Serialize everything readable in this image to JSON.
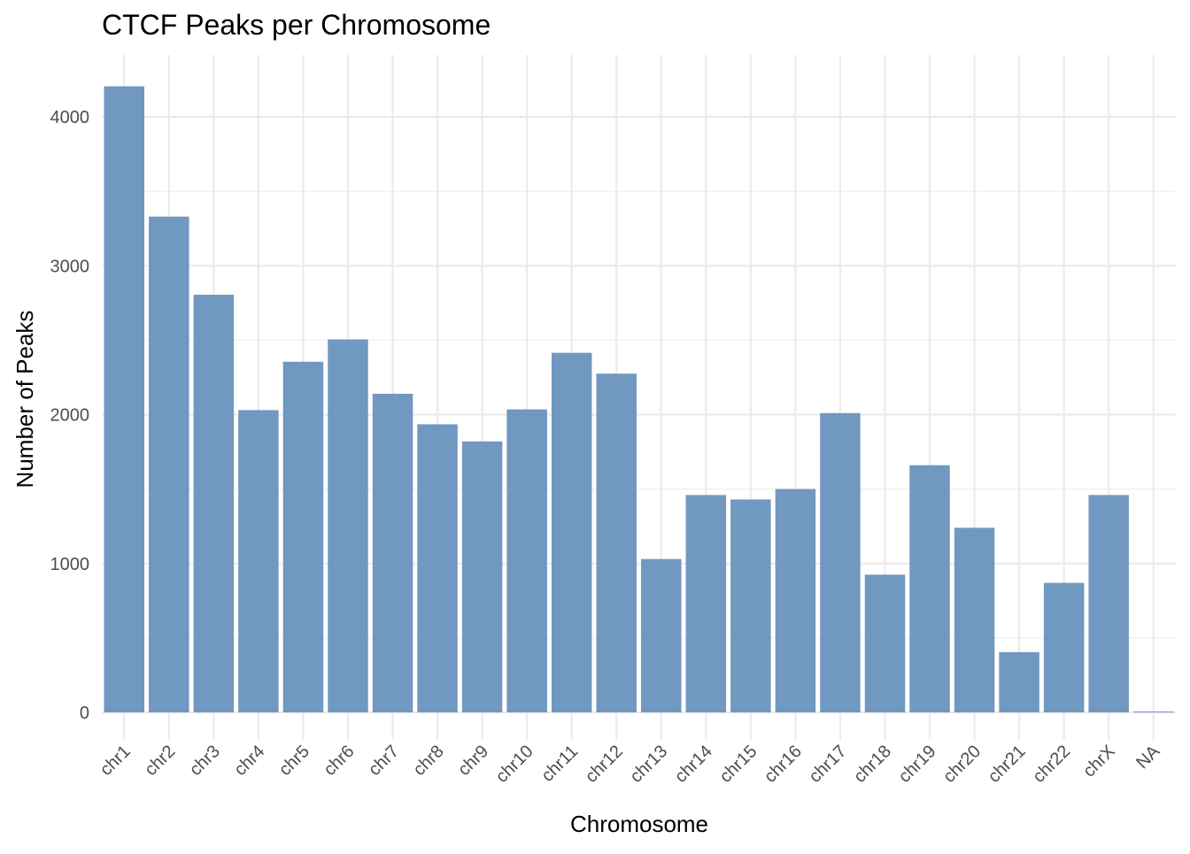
{
  "chart_data": {
    "type": "bar",
    "title": "CTCF Peaks per Chromosome",
    "xlabel": "Chromosome",
    "ylabel": "Number of Peaks",
    "categories": [
      "chr1",
      "chr2",
      "chr3",
      "chr4",
      "chr5",
      "chr6",
      "chr7",
      "chr8",
      "chr9",
      "chr10",
      "chr11",
      "chr12",
      "chr13",
      "chr14",
      "chr15",
      "chr16",
      "chr17",
      "chr18",
      "chr19",
      "chr20",
      "chr21",
      "chr22",
      "chrX",
      "NA"
    ],
    "values": [
      4205,
      3330,
      2805,
      2030,
      2355,
      2505,
      2140,
      1935,
      1820,
      2035,
      2415,
      2275,
      1030,
      1460,
      1430,
      1500,
      2010,
      925,
      1660,
      1240,
      405,
      870,
      1460,
      5
    ],
    "ylim": [
      0,
      4420
    ],
    "y_ticks": [
      0,
      1000,
      2000,
      3000,
      4000
    ],
    "grid": true,
    "bar_color": "#7098c0",
    "theme": "minimal"
  }
}
